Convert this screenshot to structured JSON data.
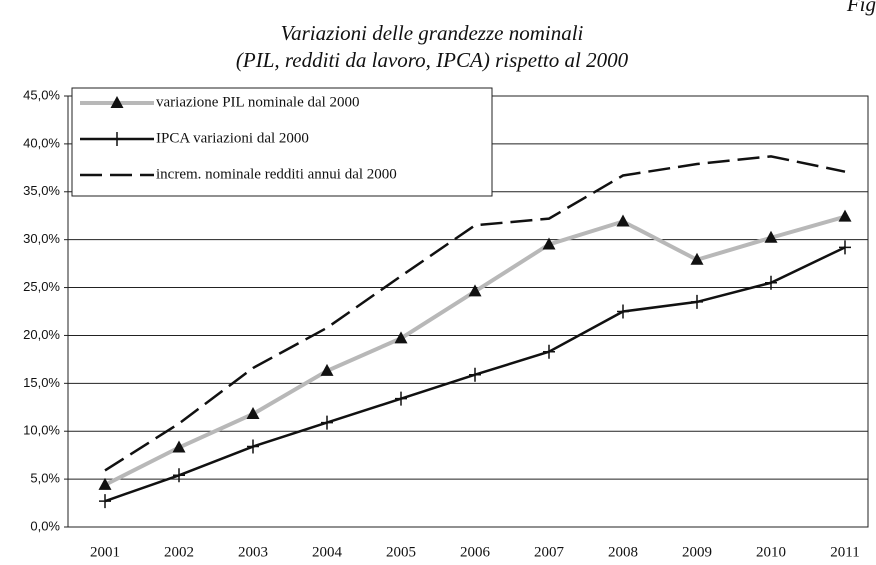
{
  "figure_label": "Fig",
  "chart_data": {
    "type": "line",
    "title": "Variazioni delle grandezze nominali",
    "subtitle": "(PIL, redditi da lavoro, IPCA) rispetto al 2000",
    "categories": [
      "2001",
      "2002",
      "2003",
      "2004",
      "2005",
      "2006",
      "2007",
      "2008",
      "2009",
      "2010",
      "2011"
    ],
    "series": [
      {
        "name": "variazione PIL nominale dal 2000",
        "color": "#b8b8b8",
        "marker": "triangle",
        "values": [
          4.4,
          8.3,
          11.8,
          16.3,
          19.7,
          24.6,
          29.5,
          31.9,
          27.9,
          30.2,
          32.4
        ]
      },
      {
        "name": "IPCA variazioni dal 2000",
        "color": "#111111",
        "marker": "plus",
        "values": [
          2.7,
          5.4,
          8.4,
          10.9,
          13.4,
          15.9,
          18.3,
          22.5,
          23.5,
          25.5,
          29.2
        ]
      },
      {
        "name": "increm. nominale redditi annui dal 2000",
        "color": "#111111",
        "dashed": true,
        "values": [
          5.9,
          10.8,
          16.6,
          20.8,
          26.2,
          31.5,
          32.2,
          36.7,
          37.9,
          38.7,
          37.1
        ]
      }
    ],
    "ylim": [
      0,
      45
    ],
    "yticks": [
      {
        "value": 0,
        "label": "0,0%"
      },
      {
        "value": 5,
        "label": "5,0%"
      },
      {
        "value": 10,
        "label": "10,0%"
      },
      {
        "value": 15,
        "label": "15,0%"
      },
      {
        "value": 20,
        "label": "20,0%"
      },
      {
        "value": 25,
        "label": "25,0%"
      },
      {
        "value": 30,
        "label": "30,0%"
      },
      {
        "value": 35,
        "label": "35,0%"
      },
      {
        "value": 40,
        "label": "40,0%"
      },
      {
        "value": 45,
        "label": "45,0%"
      }
    ],
    "grid": true,
    "legend": "upper left"
  }
}
